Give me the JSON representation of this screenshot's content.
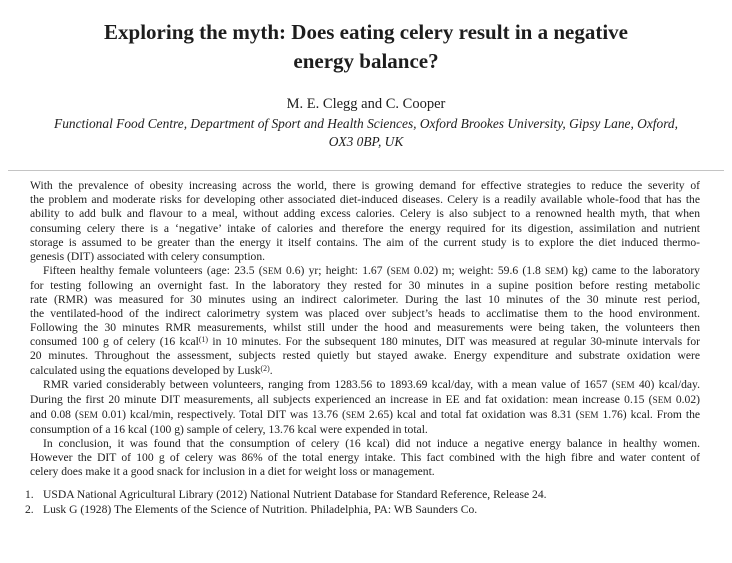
{
  "header": {
    "title": "Exploring the myth: Does eating celery result in a negative energy balance?",
    "authors": "M. E. Clegg and C. Cooper",
    "affiliation": "Functional Food Centre, Department of Sport and Health Sciences, Oxford Brookes University, Gipsy Lane, Oxford, OX3 0BP, UK"
  },
  "abstract": {
    "paragraphs": [
      {
        "indent": false,
        "lines": [
          "With the prevalence of obesity increasing across the world, there is growing demand for effective strategies to reduce the severity of",
          "the problem and moderate risks for developing other associated diet-induced diseases. Celery is a readily available whole-food that has the",
          "ability to add bulk and flavour to a meal, without adding excess calories. Celery is also subject to a renowned health myth, that when",
          "consuming celery there is a ‘negative’ intake of calories and therefore the energy required for its digestion, assimilation and nutrient",
          "storage is assumed to be greater than the energy it itself contains. The aim of the current study is to explore the diet induced thermo-",
          "genesis (DIT) associated with celery consumption."
        ]
      },
      {
        "indent": true,
        "lines": [
          "Fifteen healthy female volunteers (age: 23.5 (SEM 0.6) yr; height: 1.67 (SEM 0.02) m; weight: 59.6 (1.8 SEM) kg) came to the laboratory",
          "for testing following an overnight fast. In the laboratory they rested for 30 minutes in a supine position before resting metabolic",
          "rate (RMR) was measured for 30 minutes using an indirect calorimeter. During the last 10 minutes of the 30 minute rest period,",
          "the ventilated-hood of the indirect calorimetry system was placed over subject’s heads to acclimatise them to the hood environment.",
          "Following the 30 minutes RMR measurements, whilst still under the hood and measurements were being taken, the volunteers then",
          "consumed 100 g of celery (16 kcal^(1) in 10 minutes. For the subsequent 180 minutes, DIT was measured at regular 30-minute intervals for",
          "20 minutes. Throughout the assessment, subjects rested quietly but stayed awake. Energy expenditure and substrate oxidation were",
          "calculated using the equations developed by Lusk^(2)."
        ]
      },
      {
        "indent": true,
        "lines": [
          "RMR varied considerably between volunteers, ranging from 1283.56 to 1893.69 kcal/day, with a mean value of 1657 (SEM 40) kcal/day.",
          "During the first 20 minute DIT measurements, all subjects experienced an increase in EE and fat oxidation: mean increase 0.15 (SEM 0.02)",
          "and 0.08 (SEM 0.01) kcal/min, respectively. Total DIT was 13.76 (SEM 2.65) kcal and total fat oxidation was 8.31 (SEM 1.76) kcal. From the",
          "consumption of a 16 kcal (100 g) sample of celery, 13.76 kcal were expended in total."
        ]
      },
      {
        "indent": true,
        "lines": [
          "In conclusion, it was found that the consumption of celery (16 kcal) did not induce a negative energy balance in healthy women.",
          "However the DIT of 100 g of celery was 86% of the total energy intake. This fact combined with the high fibre and water content of",
          "celery does make it a good snack for inclusion in a diet for weight loss or management."
        ]
      }
    ]
  },
  "references": {
    "items": [
      {
        "num": "1.",
        "text": "USDA National Agricultural Library (2012) National Nutrient Database for Standard Reference, Release 24."
      },
      {
        "num": "2.",
        "text": "Lusk G (1928) The Elements of the Science of Nutrition. Philadelphia, PA: WB Saunders Co."
      }
    ]
  }
}
